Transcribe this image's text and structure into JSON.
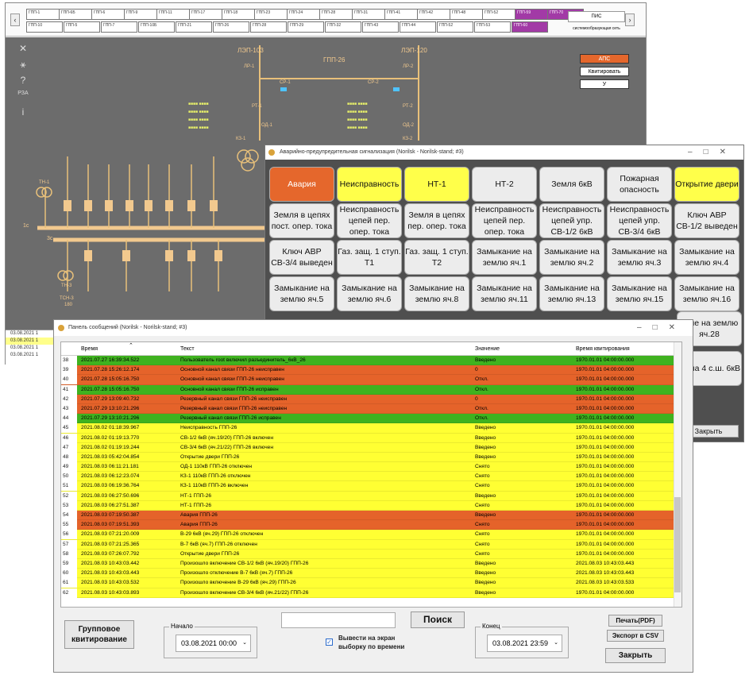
{
  "scada": {
    "substations_row1": [
      "ГПП-1",
      "ГПП-6Б",
      "ГПП-6",
      "ГПП-9",
      "ГПП-11",
      "ГПП-17",
      "ГПП-18",
      "ГПП-23",
      "ГПП-24",
      "ГПП-28",
      "ГПП-31",
      "ГПП-41",
      "ГПП-42",
      "ГПП-48",
      "ГПП-52",
      "ГПП-59",
      "ГПП-70"
    ],
    "substations_row2": [
      "ГПП-10",
      "ГПП-5",
      "ГПП-7",
      "ГПП-10Б",
      "ГПП-21",
      "ГПП-26",
      "ГПП-28",
      "ГПП-29",
      "ГПП-32",
      "ГПП-43",
      "ГПП-44",
      "ГПП-52",
      "ГПП-53",
      "ГПП-60"
    ],
    "pis_label": "ПИС",
    "pis_sub": "системообразующая сеть",
    "line_left": "ЛЭП-103",
    "line_right": "ЛЭП-120",
    "station": "ГПП-26",
    "labels": {
      "lr1": "ЛР-1",
      "lr2": "ЛР-2",
      "sr1": "СР-1",
      "sr2": "СР-2",
      "rt1": "РТ-1",
      "rt2": "РТ-2",
      "od1": "ОД-1",
      "od2": "ОД-2",
      "kz1": "КЗ-1",
      "kz2": "КЗ-2",
      "tn1": "ТН-1",
      "tn3": "ТН-3",
      "tsn3": "ТСН-3",
      "bus1": "1с",
      "bus3": "3с",
      "tsn_val": "180"
    },
    "aps_btn": "АПС",
    "ack_btn": "Квитировать",
    "u_btn": "У",
    "tools": [
      "✕",
      "⚹",
      "?",
      "РЗА",
      "i"
    ],
    "log_rows": [
      {
        "t": "03.08.2021 1"
      },
      {
        "t": "03.08.2021 1"
      },
      {
        "t": "03.08.2021 1"
      },
      {
        "t": "03.08.2021 1"
      }
    ]
  },
  "alarm": {
    "title": "Аварийно-предупредительная сигнализация (Norilsk - Norilsk-stand; #3)",
    "buttons": [
      {
        "l": "Авария",
        "s": "red"
      },
      {
        "l": "Неисправность",
        "s": "yel"
      },
      {
        "l": "НТ-1",
        "s": "yel"
      },
      {
        "l": "НТ-2",
        "s": ""
      },
      {
        "l": "Земля 6кВ",
        "s": ""
      },
      {
        "l": "Пожарная опасность",
        "s": ""
      },
      {
        "l": "Открытие двери",
        "s": "yel"
      },
      {
        "l": "Земля в цепях пост. опер. тока",
        "s": ""
      },
      {
        "l": "Неисправность цепей пер. опер. тока",
        "s": ""
      },
      {
        "l": "Земля в цепях пер. опер. тока",
        "s": ""
      },
      {
        "l": "Неисправность цепей пер. опер. тока",
        "s": ""
      },
      {
        "l": "Неисправность цепей упр. СВ-1/2 6кВ",
        "s": ""
      },
      {
        "l": "Неисправность цепей упр. СВ-3/4 6кВ",
        "s": ""
      },
      {
        "l": "Ключ АВР СВ-1/2 выведен",
        "s": ""
      },
      {
        "l": "Ключ АВР СВ-3/4 выведен",
        "s": ""
      },
      {
        "l": "Газ. защ. 1 ступ. Т1",
        "s": ""
      },
      {
        "l": "Газ. защ. 1 ступ. Т2",
        "s": ""
      },
      {
        "l": "Замыкание на землю яч.1",
        "s": ""
      },
      {
        "l": "Замыкание на землю яч.2",
        "s": ""
      },
      {
        "l": "Замыкание на землю яч.3",
        "s": ""
      },
      {
        "l": "Замыкание на землю яч.4",
        "s": ""
      },
      {
        "l": "Замыкание на землю яч.5",
        "s": ""
      },
      {
        "l": "Замыкание на землю яч.6",
        "s": ""
      },
      {
        "l": "Замыкание на землю яч.8",
        "s": ""
      },
      {
        "l": "Замыкание на землю яч.11",
        "s": ""
      },
      {
        "l": "Замыкание на землю яч.13",
        "s": ""
      },
      {
        "l": "Замыкание на землю яч.15",
        "s": ""
      },
      {
        "l": "Замыкание на землю яч.16",
        "s": ""
      }
    ],
    "btn_extra1": "ание на землю яч.28",
    "btn_extra2": "ля на 4 с.ш. 6кВ",
    "close": "Закрыть"
  },
  "messages": {
    "title": "Панель сообщений (Norilsk - Norilsk-stand; #3)",
    "columns": [
      "Время",
      "Текст",
      "Значение",
      "Время квитирования"
    ],
    "rows": [
      {
        "n": "38",
        "t": "2021.07.27 16:39:34.522",
        "x": "Пользователь root включил разъединитель_6кВ_26",
        "v": "Введено",
        "a": "1970.01.01 04:00:00.000",
        "c": "#3fb21f"
      },
      {
        "n": "39",
        "t": "2021.07.28 15:26:12.174",
        "x": "Основной канал связи ГПП-26 неисправен",
        "v": "0",
        "a": "1970.01.01 04:00:00.000",
        "c": "#e5632a"
      },
      {
        "n": "40",
        "t": "2021.07.28 15:05:16.750",
        "x": "Основной канал связи ГПП-26 неисправен",
        "v": "Откл.",
        "a": "1970.01.01 04:00:00.000",
        "c": "#e5632a"
      },
      {
        "n": "41",
        "t": "2021.07.28 15:05:16.750",
        "x": "Основной канал связи ГПП-26 исправен",
        "v": "Откл.",
        "a": "1970.01.01 04:00:00.000",
        "c": "#3fb21f"
      },
      {
        "n": "42",
        "t": "2021.07.29 13:09:40.732",
        "x": "Резервный канал связи ГПП-26 неисправен",
        "v": "0",
        "a": "1970.01.01 04:00:00.000",
        "c": "#e5632a"
      },
      {
        "n": "43",
        "t": "2021.07.29 13:10:21.296",
        "x": "Резервный канал связи ГПП-26 неисправен",
        "v": "Откл.",
        "a": "1970.01.01 04:00:00.000",
        "c": "#e5632a"
      },
      {
        "n": "44",
        "t": "2021.07.29 13:10:21.296",
        "x": "Резервный канал связи ГПП-26 исправен",
        "v": "Откл.",
        "a": "1970.01.01 04:00:00.000",
        "c": "#3fb21f"
      },
      {
        "n": "45",
        "t": "2021.08.02 01:18:39.967",
        "x": "Неисправность ГПП-26",
        "v": "Введено",
        "a": "1970.01.01 04:00:00.000",
        "c": "#ffff33"
      },
      {
        "n": "46",
        "t": "2021.08.02 01:19:13.770",
        "x": "СВ-1/2 6кВ (яч.19/20) ГПП-26 включен",
        "v": "Введено",
        "a": "1970.01.01 04:00:00.000",
        "c": "#ffff33"
      },
      {
        "n": "47",
        "t": "2021.08.02 01:19:19.244",
        "x": "СВ-3/4 6кВ (яч.21/22) ГПП-26 включен",
        "v": "Введено",
        "a": "1970.01.01 04:00:00.000",
        "c": "#ffff33"
      },
      {
        "n": "48",
        "t": "2021.08.03 05:42:04.854",
        "x": "Открытие двери ГПП-26",
        "v": "Введено",
        "a": "1970.01.01 04:00:00.000",
        "c": "#ffff33"
      },
      {
        "n": "49",
        "t": "2021.08.03 06:11:21.181",
        "x": "ОД-1 110кВ ГПП-26 отключен",
        "v": "Снято",
        "a": "1970.01.01 04:00:00.000",
        "c": "#ffff33"
      },
      {
        "n": "50",
        "t": "2021.08.03 06:12:23.074",
        "x": "КЗ-1 110кВ ГПП-26 отключен",
        "v": "Снято",
        "a": "1970.01.01 04:00:00.000",
        "c": "#ffff33"
      },
      {
        "n": "51",
        "t": "2021.08.03 06:19:36.764",
        "x": "КЗ-1 110кВ ГПП-26 включен",
        "v": "Снято",
        "a": "1970.01.01 04:00:00.000",
        "c": "#ffff33"
      },
      {
        "n": "52",
        "t": "2021.08.03 06:27:50.696",
        "x": "НТ-1 ГПП-26",
        "v": "Введено",
        "a": "1970.01.01 04:00:00.000",
        "c": "#ffff33"
      },
      {
        "n": "53",
        "t": "2021.08.03 06:27:51.387",
        "x": "НТ-1 ГПП-26",
        "v": "Снято",
        "a": "1970.01.01 04:00:00.000",
        "c": "#ffff33"
      },
      {
        "n": "54",
        "t": "2021.08.03 07:19:50.387",
        "x": "Авария ГПП-26",
        "v": "Введено",
        "a": "1970.01.01 04:00:00.000",
        "c": "#e5632a"
      },
      {
        "n": "55",
        "t": "2021.08.03 07:19:51.393",
        "x": "Авария ГПП-26",
        "v": "Снято",
        "a": "1970.01.01 04:00:00.000",
        "c": "#e5632a"
      },
      {
        "n": "56",
        "t": "2021.08.03 07:21:20.009",
        "x": "В-29 6кВ (яч.29) ГПП-26 отключен",
        "v": "Снято",
        "a": "1970.01.01 04:00:00.000",
        "c": "#ffff33"
      },
      {
        "n": "57",
        "t": "2021.08.03 07:21:25.365",
        "x": "В-7 6кВ (яч.7) ГПП-26 отключен",
        "v": "Снято",
        "a": "1970.01.01 04:00:00.000",
        "c": "#ffff33"
      },
      {
        "n": "58",
        "t": "2021.08.03 07:26:07.792",
        "x": "Открытие двери ГПП-26",
        "v": "Снято",
        "a": "1970.01.01 04:00:00.000",
        "c": "#ffff33"
      },
      {
        "n": "59",
        "t": "2021.08.03 10:43:03.442",
        "x": "Произошло включение СВ-1/2 6кВ (яч.19/20) ГПП-26",
        "v": "Введено",
        "a": "2021.08.03 10:43:03.443",
        "c": "#ffff33"
      },
      {
        "n": "60",
        "t": "2021.08.03 10:43:03.443",
        "x": "Произошло отключение В-7 6кВ (яч.7) ГПП-26",
        "v": "Введено",
        "a": "2021.08.03 10:43:03.443",
        "c": "#ffff33"
      },
      {
        "n": "61",
        "t": "2021.08.03 10:43:03.532",
        "x": "Произошло включение В-29 6кВ (яч.29) ГПП-26",
        "v": "Введено",
        "a": "2021.08.03 10:43:03.533",
        "c": "#ffff33"
      },
      {
        "n": "62",
        "t": "2021.08.03 10:43:03.893",
        "x": "Произошло включение СВ-3/4 6кВ (яч.21/22) ГПП-26",
        "v": "Введено",
        "a": "1970.01.01 04:00:00.000",
        "c": "#ffff33"
      }
    ],
    "group_ack": "Групповое квитирование",
    "start_label": "Начало",
    "start_value": "03.08.2021 00:00",
    "end_label": "Конец",
    "end_value": "03.08.2021 23:59",
    "search_value": "",
    "search_btn": "Поиск",
    "time_filter": "Вывести на экран выборку по времени",
    "print_btn": "Печать(PDF)",
    "csv_btn": "Экспорт в CSV",
    "close_btn": "Закрыть"
  }
}
